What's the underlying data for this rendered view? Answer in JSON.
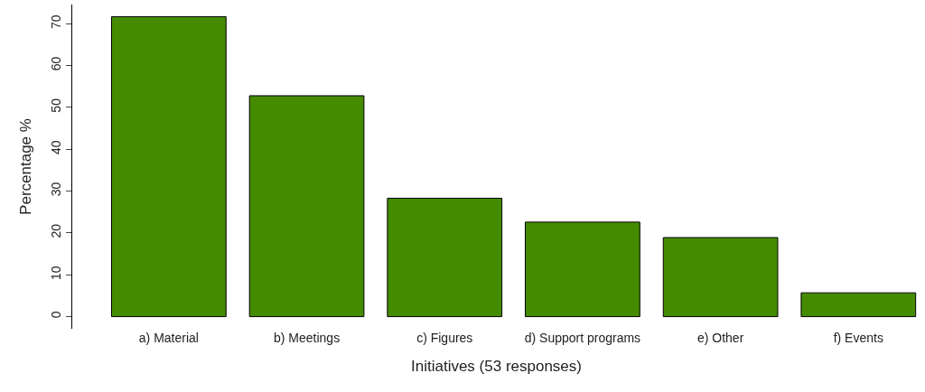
{
  "chart_data": {
    "type": "bar",
    "xlabel": "Initiatives (53 responses)",
    "ylabel": "Percentage %",
    "categories": [
      "a) Material",
      "b) Meetings",
      "c) Figures",
      "d) Support programs",
      "e) Other",
      "f) Events"
    ],
    "values": [
      71.7,
      52.8,
      28.3,
      22.6,
      18.9,
      5.7
    ],
    "color": "#458b00",
    "ylim": [
      -2.9,
      74.6
    ],
    "yticks": [
      0,
      10,
      20,
      30,
      40,
      50,
      60,
      70
    ]
  }
}
